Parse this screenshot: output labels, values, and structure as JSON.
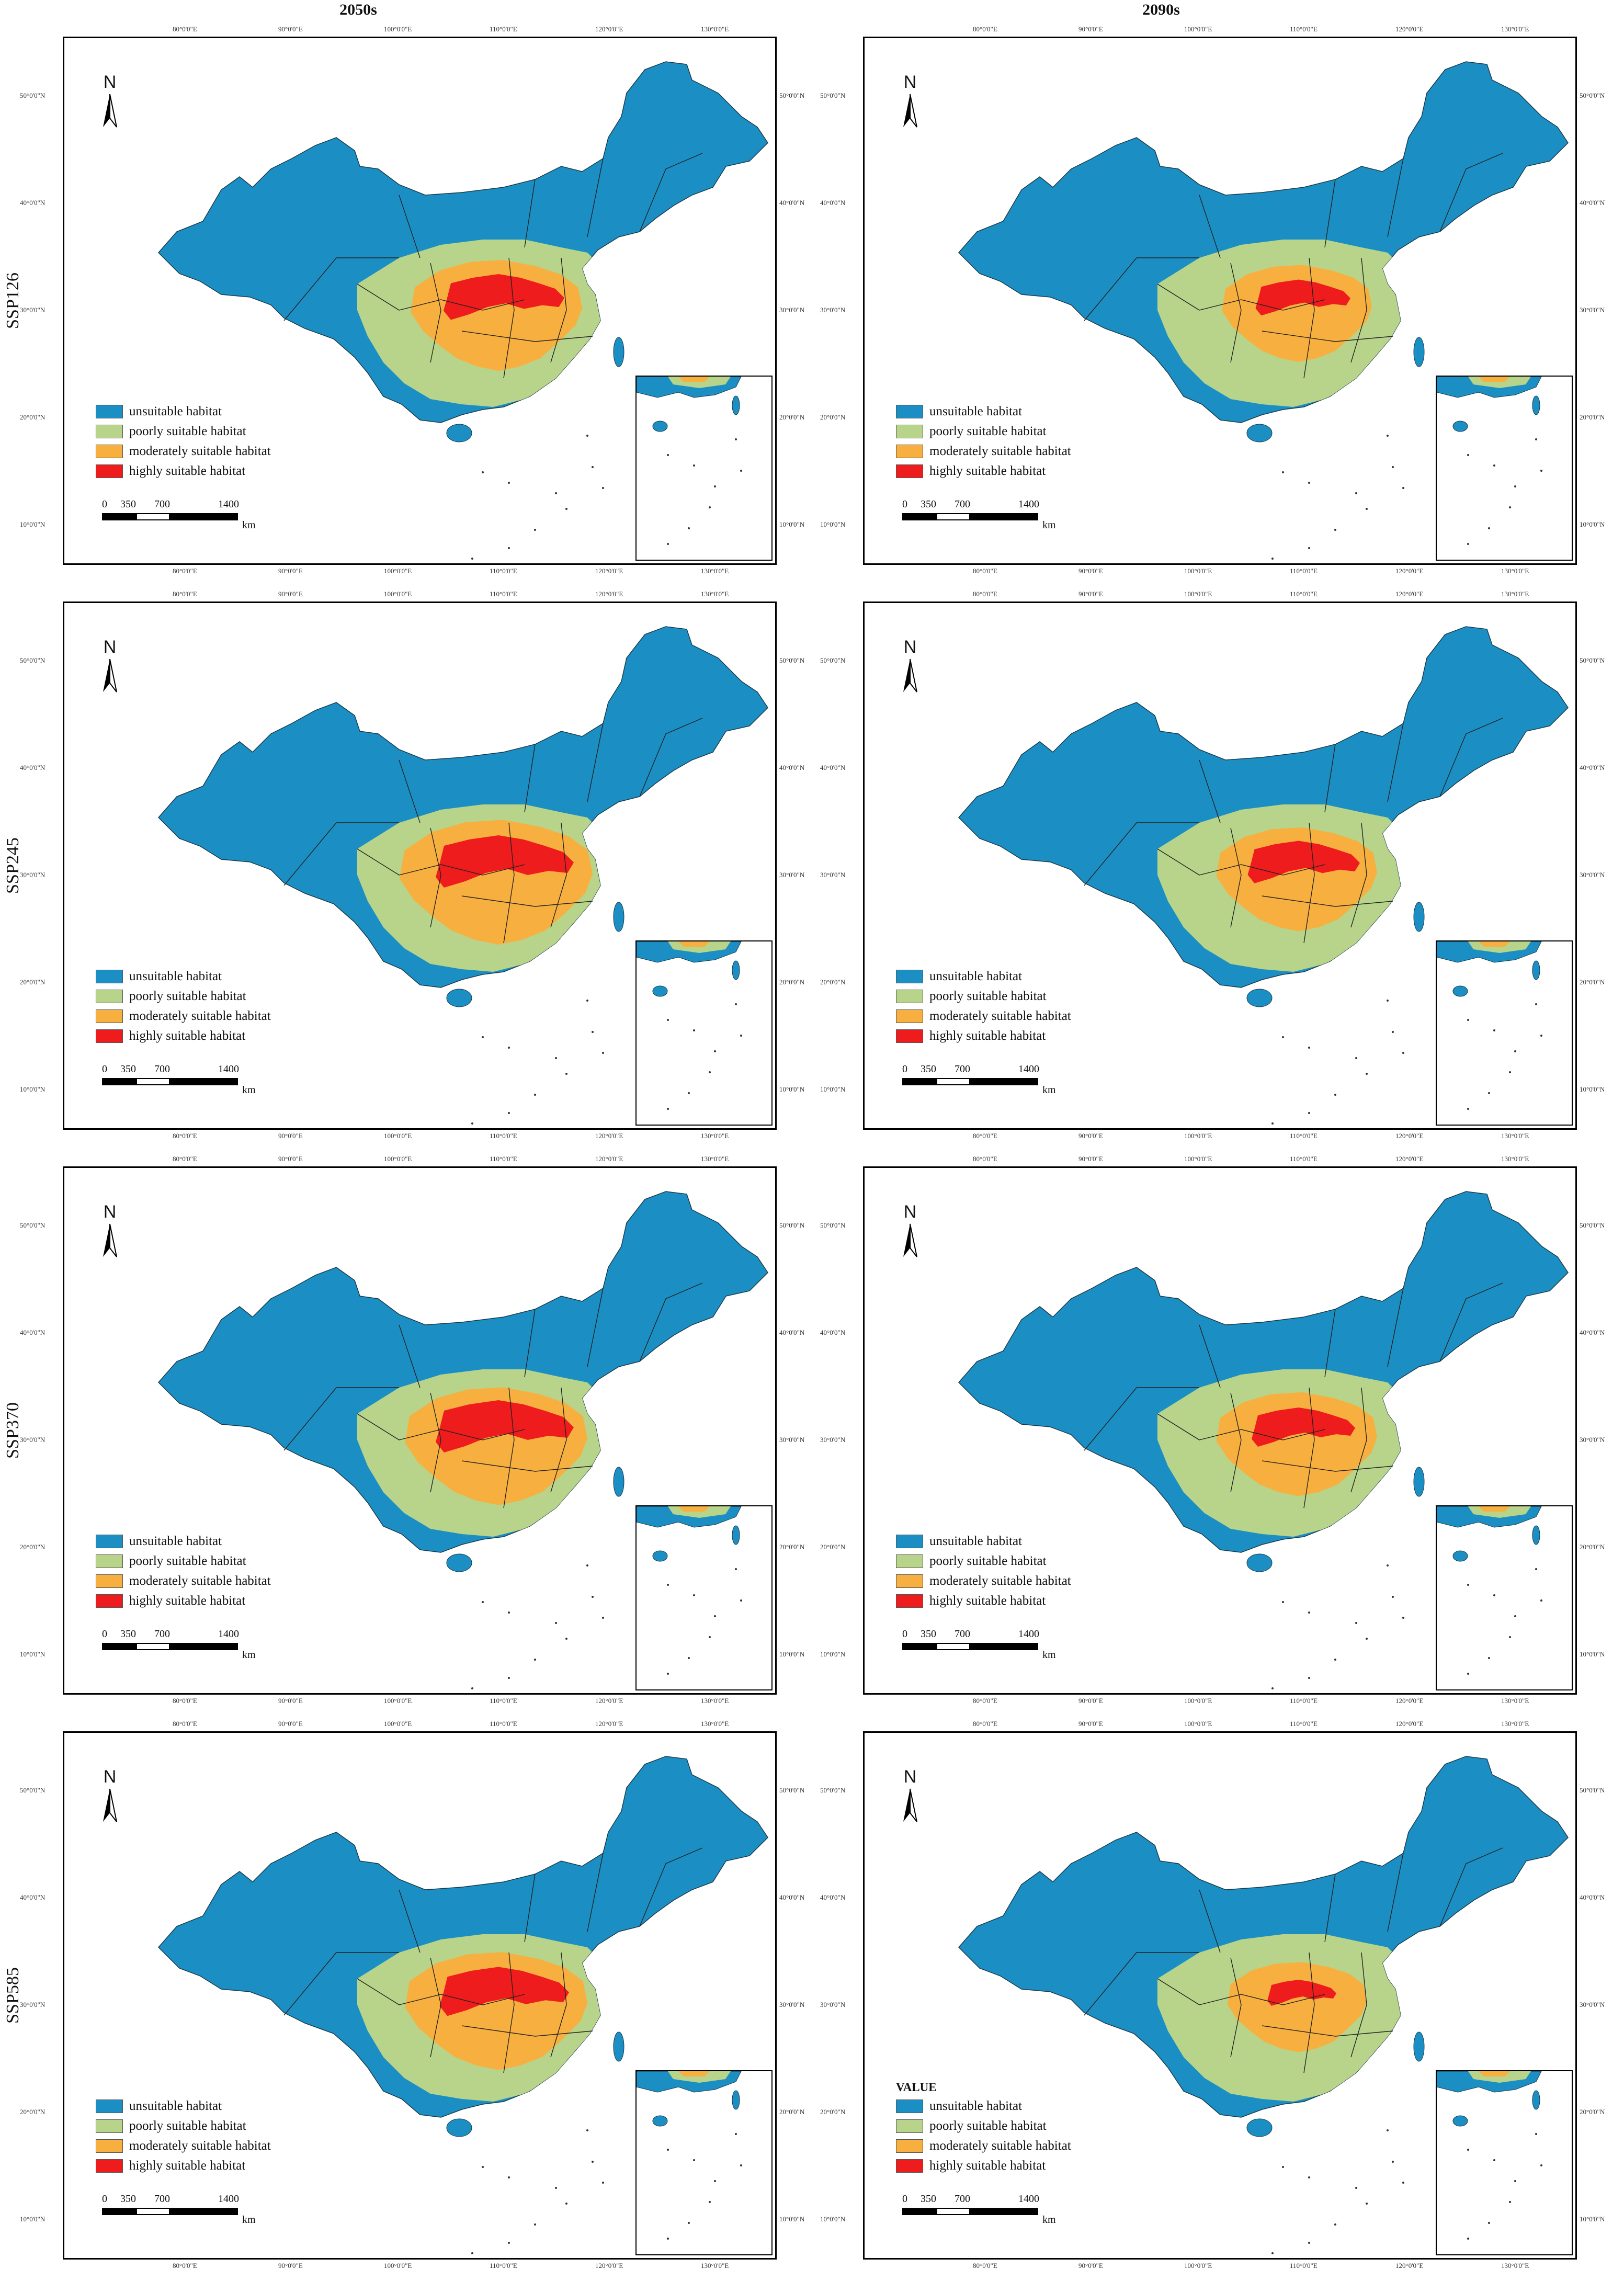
{
  "columns": [
    "2050s",
    "2090s"
  ],
  "rows": [
    "SSP126",
    "SSP245",
    "SSP370",
    "SSP585"
  ],
  "longitude_ticks": [
    "80°0'0\"E",
    "90°0'0\"E",
    "100°0'0\"E",
    "110°0'0\"E",
    "120°0'0\"E",
    "130°0'0\"E"
  ],
  "latitude_ticks": [
    "50°0'0\"N",
    "40°0'0\"N",
    "30°0'0\"N",
    "20°0'0\"N",
    "10°0'0\"N"
  ],
  "north_arrow": "N",
  "legend_title": "VALUE",
  "legend": [
    {
      "label": "unsuitable habitat",
      "color": "#1b8fc4"
    },
    {
      "label": "poorly suitable habitat",
      "color": "#b7d48a"
    },
    {
      "label": "moderately suitable habitat",
      "color": "#f7b03f"
    },
    {
      "label": "highly suitable habitat",
      "color": "#ee1c1c"
    }
  ],
  "scale_bar": {
    "labels": [
      "0",
      "350",
      "700",
      "1400"
    ],
    "unit": "km"
  },
  "panels": [
    {
      "period": "2050s",
      "scenario": "SSP126",
      "high_level": 0.7,
      "moderate_level": 0.8,
      "show_legend_title": false
    },
    {
      "period": "2090s",
      "scenario": "SSP126",
      "high_level": 0.55,
      "moderate_level": 0.7,
      "show_legend_title": false
    },
    {
      "period": "2050s",
      "scenario": "SSP245",
      "high_level": 0.8,
      "moderate_level": 0.9,
      "show_legend_title": false
    },
    {
      "period": "2090s",
      "scenario": "SSP245",
      "high_level": 0.65,
      "moderate_level": 0.75,
      "show_legend_title": false
    },
    {
      "period": "2050s",
      "scenario": "SSP370",
      "high_level": 0.8,
      "moderate_level": 0.85,
      "show_legend_title": false
    },
    {
      "period": "2090s",
      "scenario": "SSP370",
      "high_level": 0.6,
      "moderate_level": 0.75,
      "show_legend_title": false
    },
    {
      "period": "2050s",
      "scenario": "SSP585",
      "high_level": 0.75,
      "moderate_level": 0.85,
      "show_legend_title": false
    },
    {
      "period": "2090s",
      "scenario": "SSP585",
      "high_level": 0.4,
      "moderate_level": 0.65,
      "show_legend_title": true
    }
  ]
}
